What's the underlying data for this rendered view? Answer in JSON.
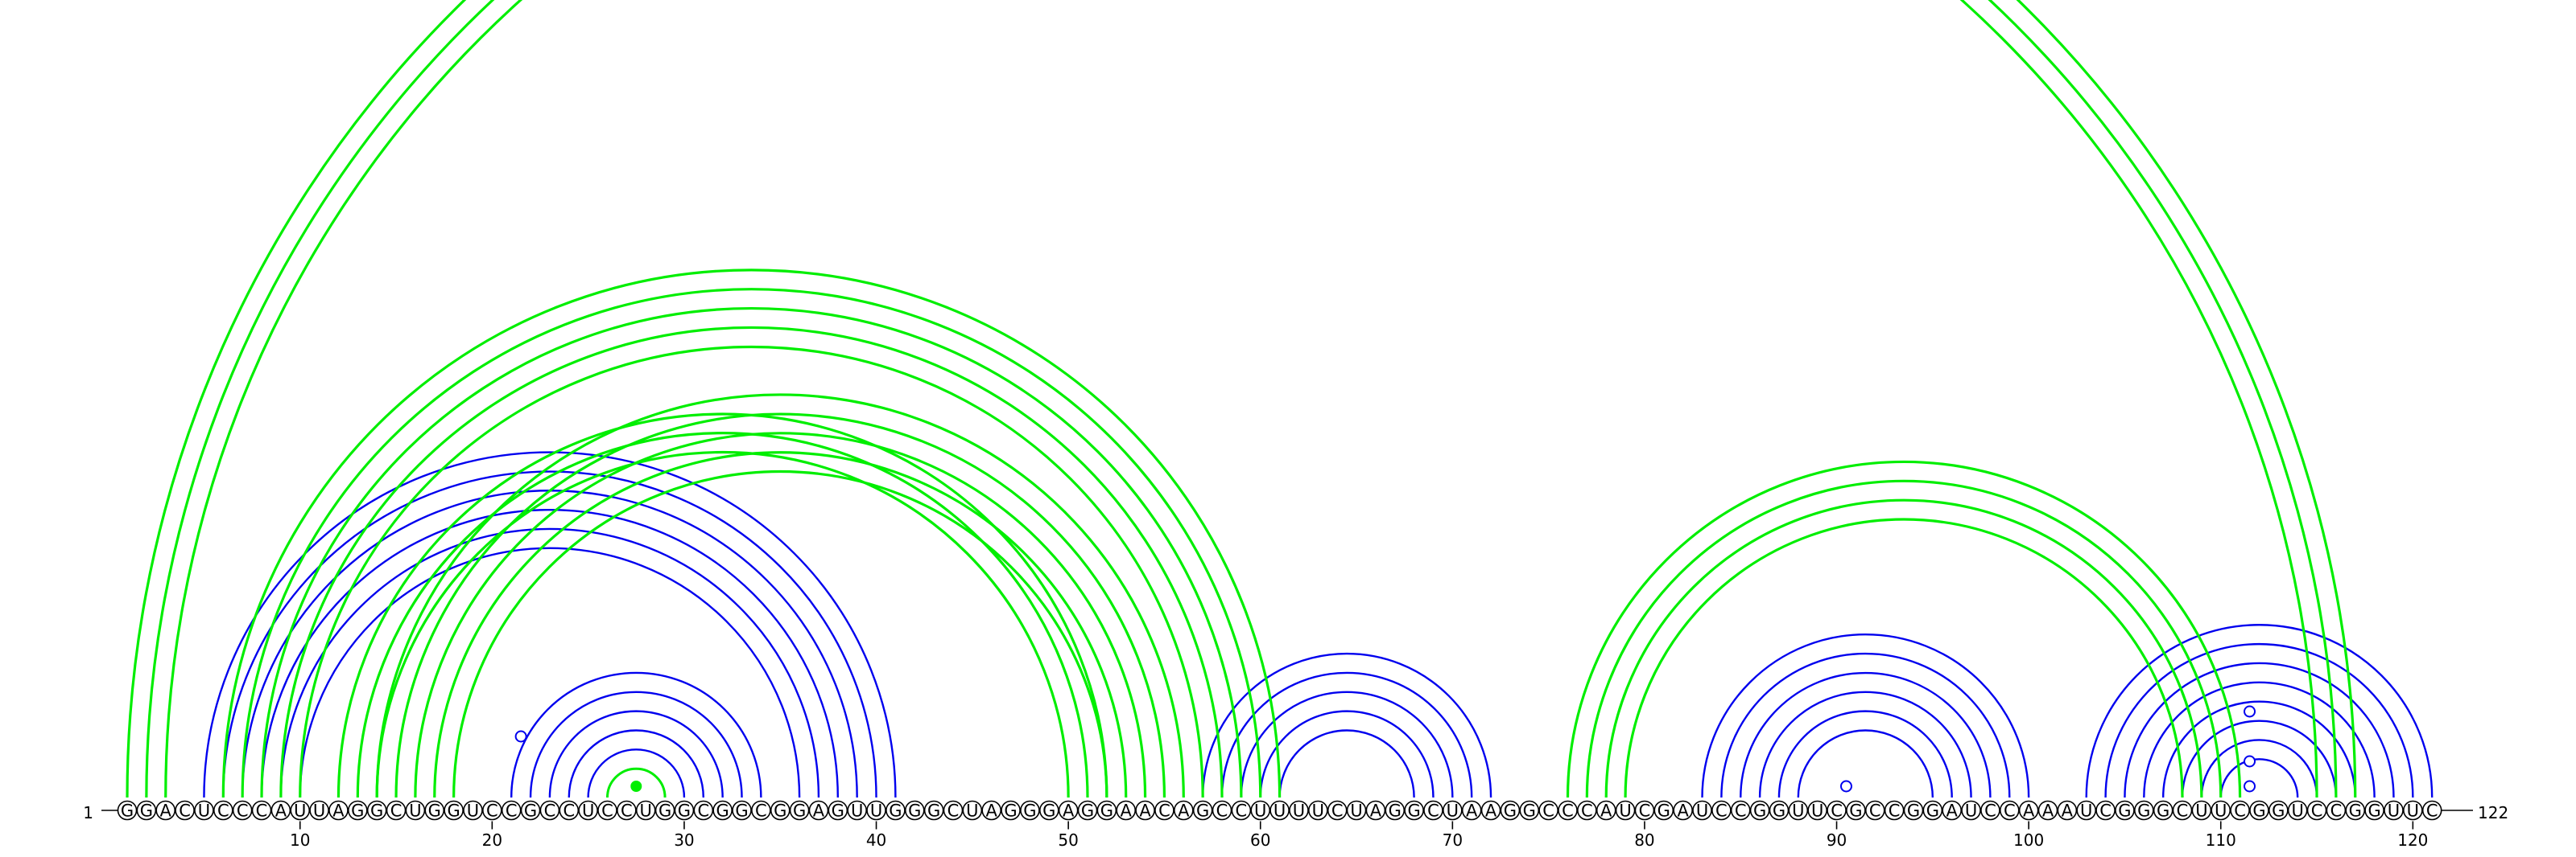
{
  "diagram": {
    "sequence": "GGACUCCCAUUAGGCUGGUCCGCCUCCUGGCGGCGGAGUUGGGCUAGGGAGGAACAGCCUUUUCUAGGCUAAGGCCCAUCGAUCCGGUUCGCCGGAUCCAAAUCGGGCUUCGGUCCGGUUC",
    "start_label": "1",
    "end_label": "122",
    "tick_labels": [
      "10",
      "20",
      "30",
      "40",
      "50",
      "60",
      "70",
      "80",
      "90",
      "100",
      "110",
      "120"
    ],
    "colors": {
      "blue": "#0000ee",
      "green": "#00ee00",
      "circle_stroke": "#000000"
    },
    "blue_helices": [
      {
        "i": 5,
        "j": 41,
        "len": 6
      },
      {
        "i": 21,
        "j": 34,
        "len": 6
      },
      {
        "i": 57,
        "j": 72,
        "len": 5
      },
      {
        "i": 83,
        "j": 100,
        "len": 6
      },
      {
        "i": 103,
        "j": 121,
        "len": 8
      }
    ],
    "green_helices": [
      {
        "i": 1,
        "j": 117,
        "len": 3
      },
      {
        "i": 6,
        "j": 61,
        "len": 5
      },
      {
        "i": 12,
        "j": 52,
        "len": 3
      },
      {
        "i": 14,
        "j": 56,
        "len": 5
      },
      {
        "i": 76,
        "j": 111,
        "len": 4
      }
    ],
    "single_arcs": [
      {
        "i": 26,
        "j": 29,
        "color": "green"
      }
    ],
    "markers": [
      {
        "pos": 21.5,
        "height": 2
      },
      {
        "pos": 90.5,
        "height": 0
      },
      {
        "pos": 111.5,
        "height": 0
      },
      {
        "pos": 111.5,
        "height": 1
      },
      {
        "pos": 111.5,
        "height": 3
      }
    ]
  }
}
